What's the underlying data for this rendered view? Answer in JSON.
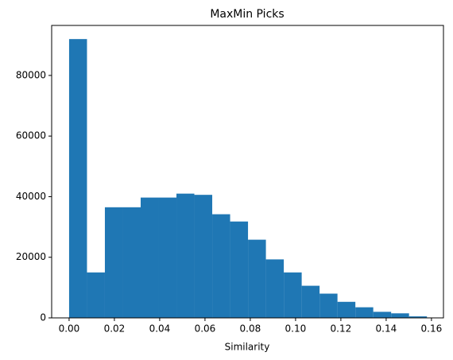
{
  "chart_data": {
    "type": "histogram",
    "title": "MaxMin Picks",
    "xlabel": "Similarity",
    "bins": [
      0,
      0.0079,
      0.0158,
      0.0237,
      0.0316,
      0.0395,
      0.0474,
      0.0553,
      0.0632,
      0.0711,
      0.079,
      0.0869,
      0.0948,
      0.1027,
      0.1106,
      0.1185,
      0.1264,
      0.1343,
      0.1422,
      0.1501,
      0.158
    ],
    "values": [
      92000,
      15000,
      36500,
      36500,
      39700,
      39700,
      41000,
      40600,
      34200,
      31800,
      25800,
      19300,
      15000,
      10600,
      8000,
      5300,
      3500,
      2000,
      1500,
      500
    ],
    "color": "#1f77b4",
    "xlim": [
      -0.0077,
      0.1653
    ],
    "xticks": [
      {
        "value": 0,
        "label": "0.00"
      },
      {
        "value": 0.02,
        "label": "0.02"
      },
      {
        "value": 0.04,
        "label": "0.04"
      },
      {
        "value": 0.06,
        "label": "0.06"
      },
      {
        "value": 0.08,
        "label": "0.08"
      },
      {
        "value": 0.1,
        "label": "0.10"
      },
      {
        "value": 0.12,
        "label": "0.12"
      },
      {
        "value": 0.14,
        "label": "0.14"
      },
      {
        "value": 0.16,
        "label": "0.16"
      }
    ],
    "ylim": [
      0,
      96500
    ],
    "yticks": [
      0,
      20000,
      40000,
      60000,
      80000
    ],
    "grid": false
  }
}
